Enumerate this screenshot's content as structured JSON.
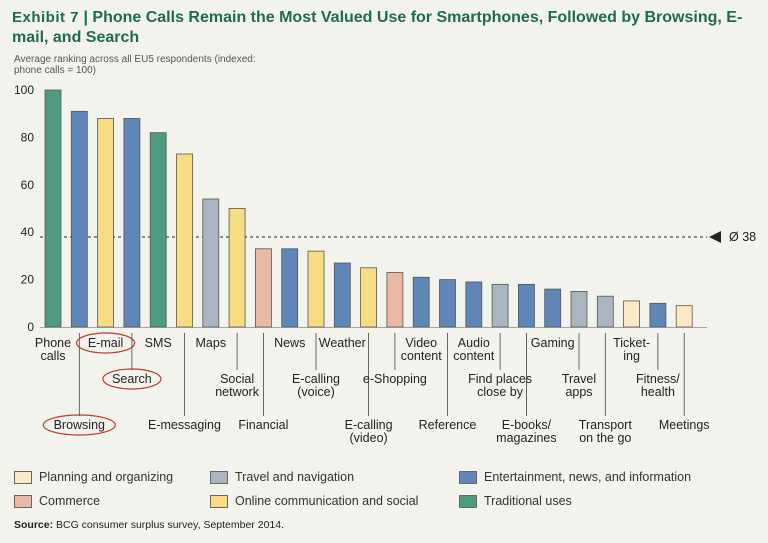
{
  "title_prefix": "Exhibit 7",
  "title_rest": "Phone Calls Remain the Most Valued Use for Smartphones, Followed by Browsing, E-mail, and Search",
  "subtitle": "Average ranking across all EU5 respondents (indexed: phone calls = 100)",
  "source_label": "Source:",
  "source_text": "BCG consumer surplus survey, September 2014.",
  "colors": {
    "planning": "#fde8c4",
    "commerce": "#e9b9a3",
    "travel": "#aab6bf",
    "online": "#f8dc83",
    "entertainment": "#5f86b7",
    "traditional": "#4e9b82",
    "highlight_circle": "#c0392b"
  },
  "legend": [
    {
      "key": "planning",
      "label": "Planning and organizing"
    },
    {
      "key": "travel",
      "label": "Travel and navigation"
    },
    {
      "key": "entertainment",
      "label": "Entertainment, news, and information"
    },
    {
      "key": "commerce",
      "label": "Commerce"
    },
    {
      "key": "online",
      "label": "Online communication and social"
    },
    {
      "key": "traditional",
      "label": "Traditional uses"
    }
  ],
  "chart_data": {
    "type": "bar",
    "title": "Phone Calls Remain the Most Valued Use for Smartphones, Followed by Browsing, E-mail, and Search",
    "ylabel": "Average ranking across all EU5 respondents (indexed: phone calls = 100)",
    "ylim": [
      0,
      100
    ],
    "yticks": [
      0,
      20,
      40,
      60,
      80,
      100
    ],
    "average": {
      "value": 38,
      "label": "Ø 38"
    },
    "bars": [
      {
        "label": "Phone calls",
        "value": 100,
        "category": "traditional",
        "circled": false
      },
      {
        "label": "Browsing",
        "value": 91,
        "category": "entertainment",
        "circled": true
      },
      {
        "label": "E-mail",
        "value": 88,
        "category": "online",
        "circled": true
      },
      {
        "label": "Search",
        "value": 88,
        "category": "entertainment",
        "circled": true
      },
      {
        "label": "SMS",
        "value": 82,
        "category": "traditional",
        "circled": false
      },
      {
        "label": "E-messaging",
        "value": 73,
        "category": "online",
        "circled": false
      },
      {
        "label": "Maps",
        "value": 54,
        "category": "travel",
        "circled": false
      },
      {
        "label": "Social network",
        "value": 50,
        "category": "online",
        "circled": false
      },
      {
        "label": "Financial",
        "value": 33,
        "category": "commerce",
        "circled": false
      },
      {
        "label": "News",
        "value": 33,
        "category": "entertainment",
        "circled": false
      },
      {
        "label": "E-calling (voice)",
        "value": 32,
        "category": "online",
        "circled": false
      },
      {
        "label": "Weather",
        "value": 27,
        "category": "entertainment",
        "circled": false
      },
      {
        "label": "E-calling (video)",
        "value": 25,
        "category": "online",
        "circled": false
      },
      {
        "label": "e-Shopping",
        "value": 23,
        "category": "commerce",
        "circled": false
      },
      {
        "label": "Video content",
        "value": 21,
        "category": "entertainment",
        "circled": false
      },
      {
        "label": "Reference",
        "value": 20,
        "category": "entertainment",
        "circled": false
      },
      {
        "label": "Audio content",
        "value": 19,
        "category": "entertainment",
        "circled": false
      },
      {
        "label": "Find places close by",
        "value": 18,
        "category": "travel",
        "circled": false
      },
      {
        "label": "E-books/ magazines",
        "value": 18,
        "category": "entertainment",
        "circled": false
      },
      {
        "label": "Gaming",
        "value": 16,
        "category": "entertainment",
        "circled": false
      },
      {
        "label": "Travel apps",
        "value": 15,
        "category": "travel",
        "circled": false
      },
      {
        "label": "Transport on the go",
        "value": 13,
        "category": "travel",
        "circled": false
      },
      {
        "label": "Ticket- ing",
        "value": 11,
        "category": "planning",
        "circled": false
      },
      {
        "label": "Fitness/ health",
        "value": 10,
        "category": "entertainment",
        "circled": false
      },
      {
        "label": "Meetings",
        "value": 9,
        "category": "planning",
        "circled": false
      }
    ]
  }
}
